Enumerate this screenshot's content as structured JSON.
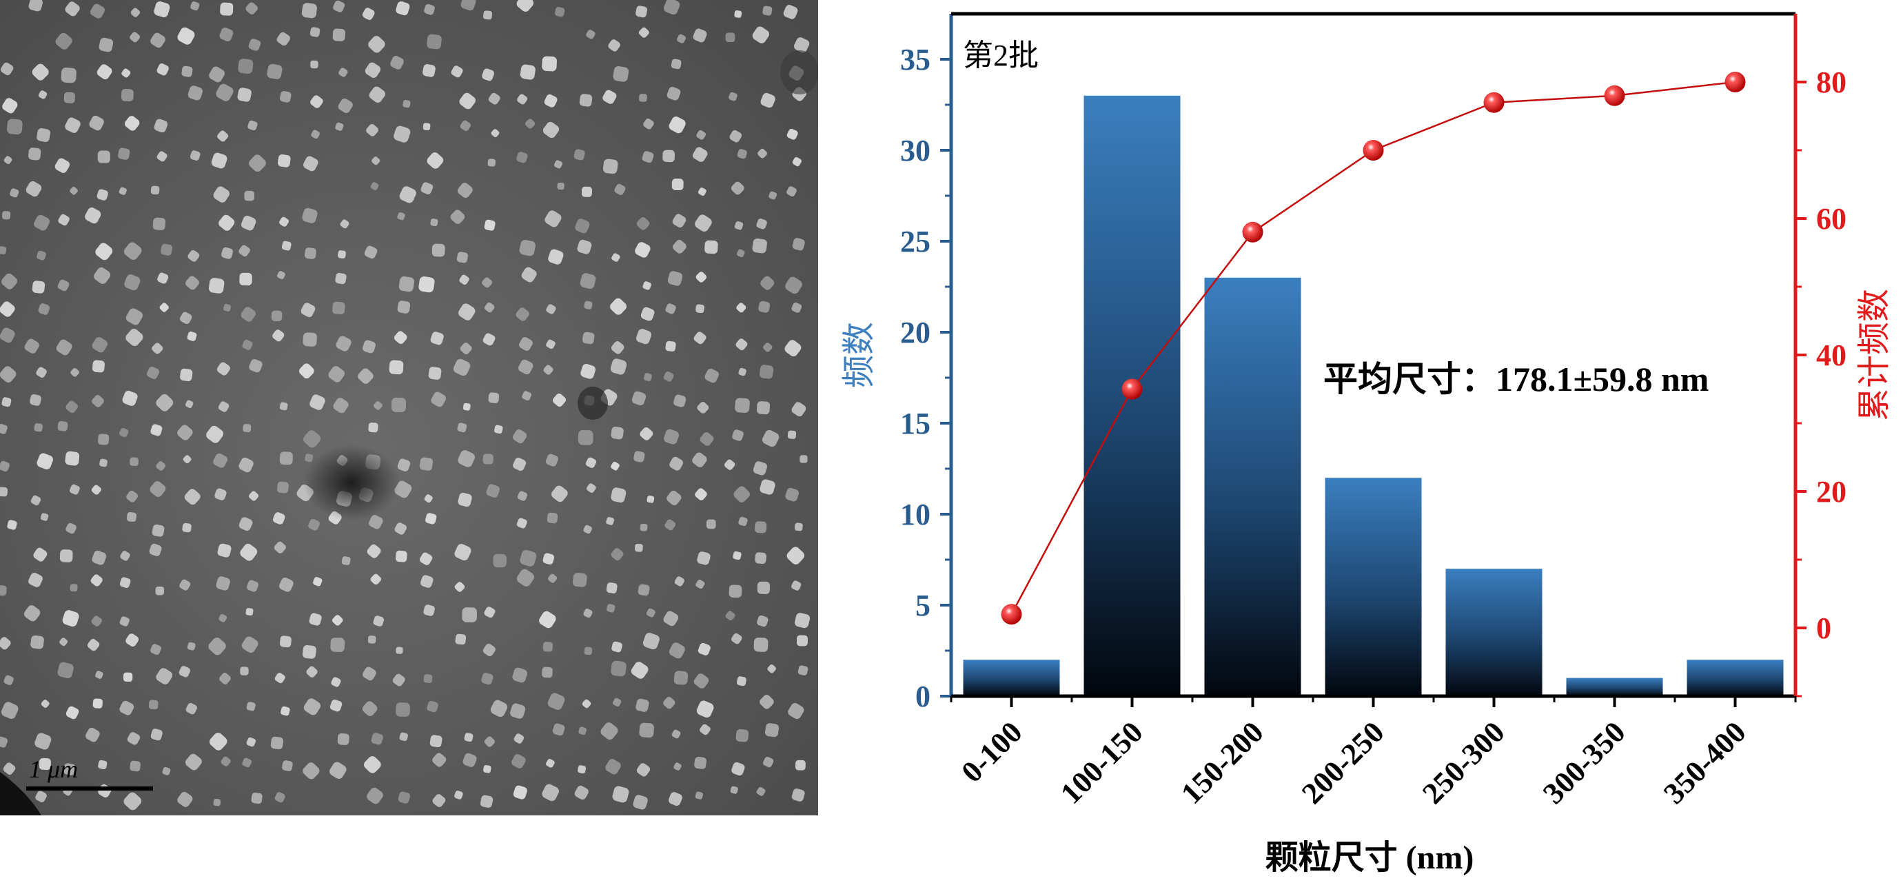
{
  "image_panel": {
    "scale_bar_label": "1 μm"
  },
  "chart_data": {
    "type": "bar",
    "panel_label": "第2批",
    "annotation": "平均尺寸：178.1±59.8 nm",
    "xlabel": "颗粒尺寸 (nm)",
    "ylabel": "频数",
    "y2label": "累计频数",
    "categories": [
      "0-100",
      "100-150",
      "150-200",
      "200-250",
      "250-300",
      "300-350",
      "350-400"
    ],
    "series": [
      {
        "name": "频数",
        "type": "bar",
        "axis": "left",
        "values": [
          2,
          33,
          23,
          12,
          7,
          1,
          2
        ]
      },
      {
        "name": "累计频数",
        "type": "line",
        "axis": "right",
        "values": [
          2,
          35,
          58,
          70,
          77,
          78,
          80
        ]
      }
    ],
    "ylim": [
      0,
      37.5
    ],
    "y_ticks": [
      0,
      5,
      10,
      15,
      20,
      25,
      30,
      35
    ],
    "y2lim": [
      -10,
      90
    ],
    "y2_ticks": [
      0,
      20,
      40,
      60,
      80
    ],
    "colors": {
      "bar_top": "#3b7fc0",
      "bar_bottom": "#02060d",
      "left_axis": "#2a5d8f",
      "left_label": "#3e7fc0",
      "right_axis": "#e01b1b",
      "line": "#c40d0d"
    },
    "grid": false
  }
}
